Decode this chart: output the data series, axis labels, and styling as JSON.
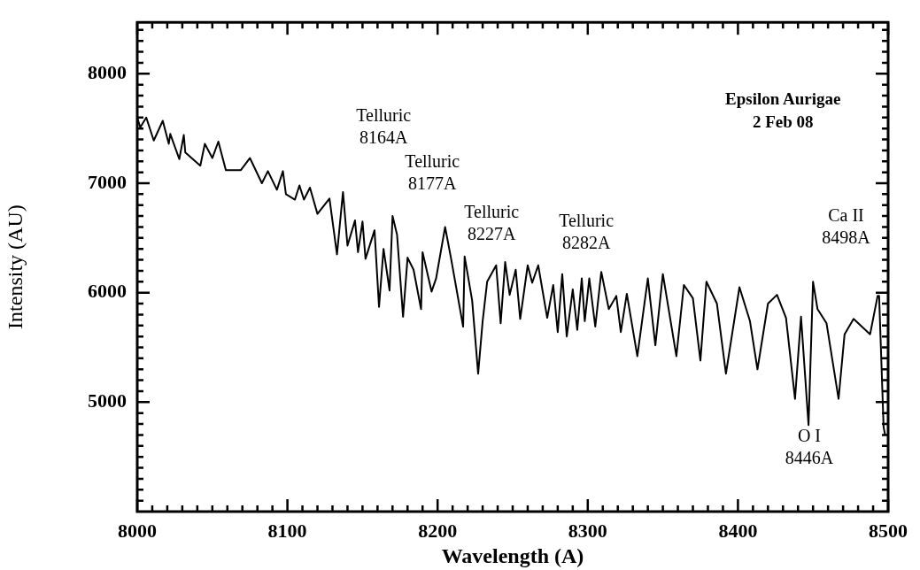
{
  "chart_data": {
    "type": "line",
    "title": "Epsilon Aurigae",
    "subtitle": "2 Feb 08",
    "xlabel": "Wavelength (A)",
    "ylabel": "Intensity (AU)",
    "xlim": [
      8000,
      8500
    ],
    "ylim": [
      4000,
      8470
    ],
    "xticks": [
      8000,
      {
        "value": 8010,
        "label": null
      },
      {
        "value": 8020,
        "label": null
      },
      {
        "value": 8030,
        "label": null
      },
      {
        "value": 8040,
        "label": null
      },
      {
        "value": 8050,
        "label": null
      },
      {
        "value": 8060,
        "label": null
      },
      {
        "value": 8070,
        "label": null
      },
      {
        "value": 8080,
        "label": null
      },
      {
        "value": 8090,
        "label": null
      },
      8100,
      {
        "value": 8110,
        "label": null
      },
      {
        "value": 8120,
        "label": null
      },
      {
        "value": 8130,
        "label": null
      },
      {
        "value": 8140,
        "label": null
      },
      {
        "value": 8150,
        "label": null
      },
      {
        "value": 8160,
        "label": null
      },
      {
        "value": 8170,
        "label": null
      },
      {
        "value": 8180,
        "label": null
      },
      {
        "value": 8190,
        "label": null
      },
      8200,
      {
        "value": 8210,
        "label": null
      },
      {
        "value": 8220,
        "label": null
      },
      {
        "value": 8230,
        "label": null
      },
      {
        "value": 8240,
        "label": null
      },
      {
        "value": 8250,
        "label": null
      },
      {
        "value": 8260,
        "label": null
      },
      {
        "value": 8270,
        "label": null
      },
      {
        "value": 8280,
        "label": null
      },
      {
        "value": 8290,
        "label": null
      },
      8300,
      {
        "value": 8310,
        "label": null
      },
      {
        "value": 8320,
        "label": null
      },
      {
        "value": 8330,
        "label": null
      },
      {
        "value": 8340,
        "label": null
      },
      {
        "value": 8350,
        "label": null
      },
      {
        "value": 8360,
        "label": null
      },
      {
        "value": 8370,
        "label": null
      },
      {
        "value": 8380,
        "label": null
      },
      {
        "value": 8390,
        "label": null
      },
      8400,
      {
        "value": 8410,
        "label": null
      },
      {
        "value": 8420,
        "label": null
      },
      {
        "value": 8430,
        "label": null
      },
      {
        "value": 8440,
        "label": null
      },
      {
        "value": 8450,
        "label": null
      },
      {
        "value": 8460,
        "label": null
      },
      {
        "value": 8470,
        "label": null
      },
      {
        "value": 8480,
        "label": null
      },
      {
        "value": 8490,
        "label": null
      },
      8500
    ],
    "yticks": [
      {
        "value": 4100,
        "label": null
      },
      {
        "value": 4200,
        "label": null
      },
      {
        "value": 4300,
        "label": null
      },
      {
        "value": 4400,
        "label": null
      },
      {
        "value": 4500,
        "label": null
      },
      {
        "value": 4600,
        "label": null
      },
      {
        "value": 4700,
        "label": null
      },
      {
        "value": 4800,
        "label": null
      },
      {
        "value": 4900,
        "label": null
      },
      5000,
      {
        "value": 5100,
        "label": null
      },
      {
        "value": 5200,
        "label": null
      },
      {
        "value": 5300,
        "label": null
      },
      {
        "value": 5400,
        "label": null
      },
      {
        "value": 5500,
        "label": null
      },
      {
        "value": 5600,
        "label": null
      },
      {
        "value": 5700,
        "label": null
      },
      {
        "value": 5800,
        "label": null
      },
      {
        "value": 5900,
        "label": null
      },
      6000,
      {
        "value": 6100,
        "label": null
      },
      {
        "value": 6200,
        "label": null
      },
      {
        "value": 6300,
        "label": null
      },
      {
        "value": 6400,
        "label": null
      },
      {
        "value": 6500,
        "label": null
      },
      {
        "value": 6600,
        "label": null
      },
      {
        "value": 6700,
        "label": null
      },
      {
        "value": 6800,
        "label": null
      },
      {
        "value": 6900,
        "label": null
      },
      7000,
      {
        "value": 7100,
        "label": null
      },
      {
        "value": 7200,
        "label": null
      },
      {
        "value": 7300,
        "label": null
      },
      {
        "value": 7400,
        "label": null
      },
      {
        "value": 7500,
        "label": null
      },
      {
        "value": 7600,
        "label": null
      },
      {
        "value": 7700,
        "label": null
      },
      {
        "value": 7800,
        "label": null
      },
      {
        "value": 7900,
        "label": null
      },
      8000,
      {
        "value": 8100,
        "label": null
      },
      {
        "value": 8200,
        "label": null
      },
      {
        "value": 8300,
        "label": null
      },
      {
        "value": 8400,
        "label": null
      }
    ],
    "x": [
      8000,
      8002,
      8006,
      8011,
      8017,
      8021,
      8022,
      8028,
      8031,
      8032,
      8042,
      8045,
      8050,
      8054,
      8059,
      8069,
      8075,
      8083,
      8087,
      8093,
      8097,
      8099,
      8105,
      8108,
      8111,
      8115,
      8120,
      8128,
      8133,
      8137,
      8140,
      8145,
      8147,
      8150,
      8152,
      8158,
      8161,
      8164,
      8168,
      8170,
      8173,
      8177,
      8180,
      8184,
      8189,
      8190,
      8196,
      8199,
      8205,
      8209,
      8217,
      8218,
      8223,
      8227,
      8230,
      8233,
      8239,
      8242,
      8245,
      8248,
      8252,
      8255,
      8260,
      8263,
      8267,
      8273,
      8277,
      8280,
      8283,
      8286,
      8290,
      8293,
      8296,
      8298,
      8301,
      8305,
      8309,
      8314,
      8319,
      8322,
      8326,
      8333,
      8340,
      8345,
      8350,
      8359,
      8364,
      8370,
      8375,
      8379,
      8386,
      8392,
      8401,
      8408,
      8413,
      8420,
      8426,
      8432,
      8438,
      8442,
      8447,
      8450,
      8453,
      8459,
      8467,
      8471,
      8477,
      8488,
      8493,
      8494,
      8497,
      8498
    ],
    "series": [
      {
        "color": "#000000",
        "values": [
          7600,
          7510,
          7600,
          7390,
          7570,
          7360,
          7450,
          7220,
          7440,
          7280,
          7160,
          7360,
          7230,
          7380,
          7120,
          7120,
          7230,
          7000,
          7110,
          6940,
          7110,
          6900,
          6850,
          6980,
          6850,
          6960,
          6720,
          6860,
          6350,
          6920,
          6430,
          6660,
          6370,
          6650,
          6310,
          6570,
          5870,
          6400,
          6020,
          6700,
          6530,
          5780,
          6320,
          6210,
          5850,
          6370,
          6010,
          6130,
          6600,
          6310,
          5690,
          6330,
          5930,
          5260,
          5740,
          6100,
          6250,
          5720,
          6280,
          5980,
          6210,
          5760,
          6250,
          6090,
          6250,
          5770,
          6070,
          5640,
          6170,
          5600,
          6030,
          5660,
          6130,
          5740,
          6130,
          5690,
          6190,
          5850,
          5970,
          5640,
          5990,
          5420,
          6130,
          5520,
          6170,
          5420,
          6070,
          5950,
          5380,
          6100,
          5900,
          5260,
          6050,
          5740,
          5300,
          5900,
          5980,
          5770,
          5030,
          5780,
          4790,
          6100,
          5850,
          5720,
          5030,
          5620,
          5760,
          5620,
          5970,
          5970,
          4770,
          4700
        ]
      }
    ],
    "annotations": [
      "Telluric\n8164A",
      "Telluric\n8177A",
      "Telluric\n8227A",
      "Telluric\n8282A",
      "Ca II\n8498A",
      "O I\n8446A"
    ]
  }
}
